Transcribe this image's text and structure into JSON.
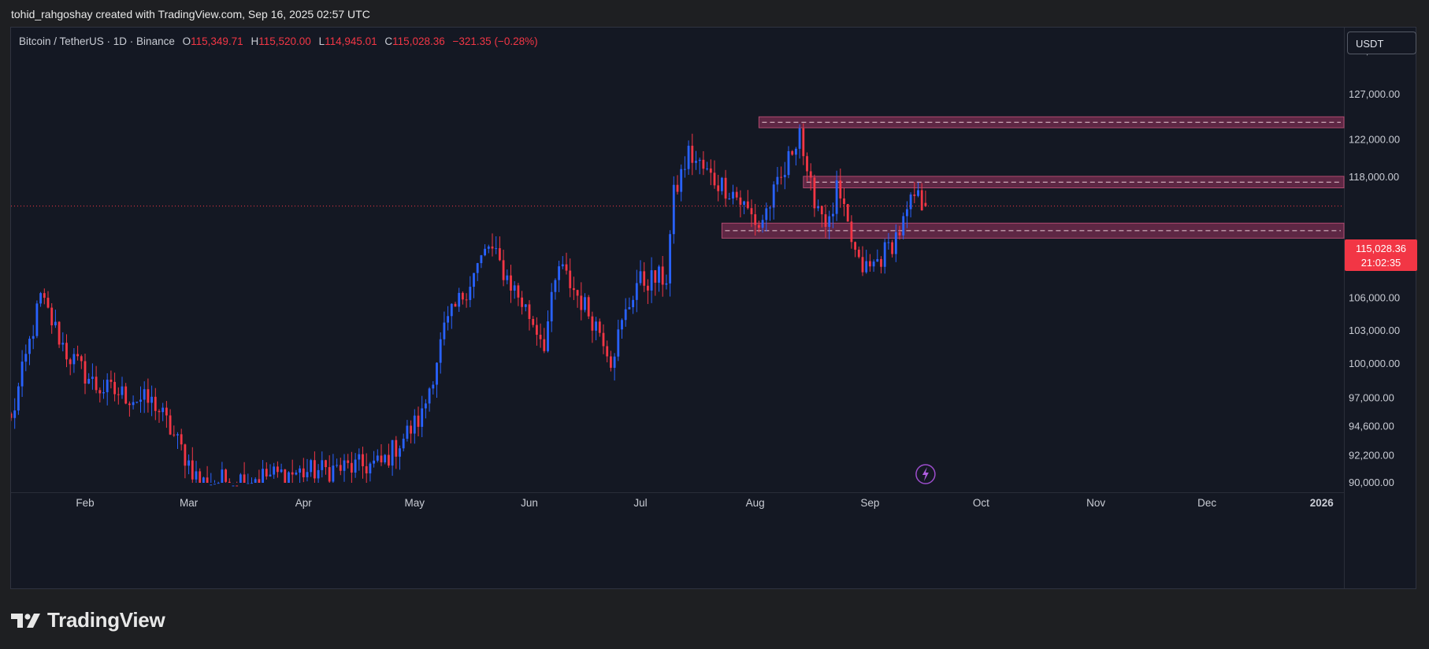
{
  "header": {
    "attribution": "tohid_rahgoshay created with TradingView.com, Sep 16, 2025 02:57 UTC"
  },
  "legend": {
    "symbol": "Bitcoin / TetherUS · 1D · Binance",
    "o_label": "O",
    "o_value": "115,349.71",
    "h_label": "H",
    "h_value": "115,520.00",
    "l_label": "L",
    "l_value": "114,945.01",
    "c_label": "C",
    "c_value": "115,028.36",
    "change": "−321.35 (−0.28%)"
  },
  "currency_button": "USDT",
  "price_tag": {
    "price": "115,028.36",
    "countdown": "21:02:35"
  },
  "footer": {
    "brand": "TradingView"
  },
  "colors": {
    "up": "#2962ff",
    "down": "#f23645",
    "zone_fill": "#6b2a4a",
    "zone_border": "#b04a70",
    "background": "#141823"
  },
  "chart_data": {
    "type": "candlestick",
    "y_scale": "log",
    "ylim": [
      90000,
      134000
    ],
    "y_ticks": [
      132000,
      127000,
      122000,
      118000,
      110000,
      106000,
      103000,
      100000,
      97000,
      94600,
      92200,
      90000
    ],
    "y_tick_labels": [
      "132,000.00",
      "127,000.00",
      "122,000.00",
      "118,000.00",
      "110,000.00",
      "106,000.00",
      "103,000.00",
      "100,000.00",
      "97,000.00",
      "94,600.00",
      "92,200.00",
      "90,000.00"
    ],
    "x_labels": [
      {
        "label": "Feb",
        "date": "2025-02-01"
      },
      {
        "label": "Mar",
        "date": "2025-03-01"
      },
      {
        "label": "Apr",
        "date": "2025-04-01"
      },
      {
        "label": "May",
        "date": "2025-05-01"
      },
      {
        "label": "Jun",
        "date": "2025-06-01"
      },
      {
        "label": "Jul",
        "date": "2025-07-01"
      },
      {
        "label": "Aug",
        "date": "2025-08-01"
      },
      {
        "label": "Sep",
        "date": "2025-09-01"
      },
      {
        "label": "Oct",
        "date": "2025-10-01"
      },
      {
        "label": "Nov",
        "date": "2025-11-01"
      },
      {
        "label": "Dec",
        "date": "2025-12-01"
      },
      {
        "label": "2026",
        "date": "2026-01-01"
      }
    ],
    "xlim": [
      "2025-01-12",
      "2026-01-07"
    ],
    "last_price": 115028.36,
    "zones": [
      {
        "from": "2025-08-02",
        "to": "2026-01-07",
        "low": 123300,
        "high": 124500
      },
      {
        "from": "2025-08-14",
        "to": "2026-01-07",
        "low": 116900,
        "high": 118100
      },
      {
        "from": "2025-07-23",
        "to": "2026-01-07",
        "low": 111800,
        "high": 113300
      }
    ],
    "key_points": [
      [
        "2025-01-12",
        95000
      ],
      [
        "2025-01-20",
        106000
      ],
      [
        "2025-01-27",
        101000
      ],
      [
        "2025-02-04",
        98000
      ],
      [
        "2025-02-20",
        96500
      ],
      [
        "2025-03-04",
        90000
      ],
      [
        "2025-04-22",
        91500
      ],
      [
        "2025-05-03",
        95500
      ],
      [
        "2025-05-09",
        103000
      ],
      [
        "2025-05-21",
        111000
      ],
      [
        "2025-06-05",
        102000
      ],
      [
        "2025-06-09",
        109000
      ],
      [
        "2025-06-21",
        102500
      ],
      [
        "2025-06-23",
        100500
      ],
      [
        "2025-06-30",
        107500
      ],
      [
        "2025-07-08",
        108000
      ],
      [
        "2025-07-10",
        116000
      ],
      [
        "2025-07-14",
        120500
      ],
      [
        "2025-07-20",
        118000
      ],
      [
        "2025-07-26",
        116500
      ],
      [
        "2025-08-02",
        113000
      ],
      [
        "2025-08-09",
        118500
      ],
      [
        "2025-08-13",
        123500
      ],
      [
        "2025-08-15",
        117500
      ],
      [
        "2025-08-21",
        113000
      ],
      [
        "2025-08-23",
        116500
      ],
      [
        "2025-08-29",
        109000
      ],
      [
        "2025-09-01",
        108800
      ],
      [
        "2025-09-06",
        110800
      ],
      [
        "2025-09-10",
        113200
      ],
      [
        "2025-09-13",
        116000
      ],
      [
        "2025-09-15",
        115350
      ],
      [
        "2025-09-16",
        115028
      ]
    ]
  }
}
